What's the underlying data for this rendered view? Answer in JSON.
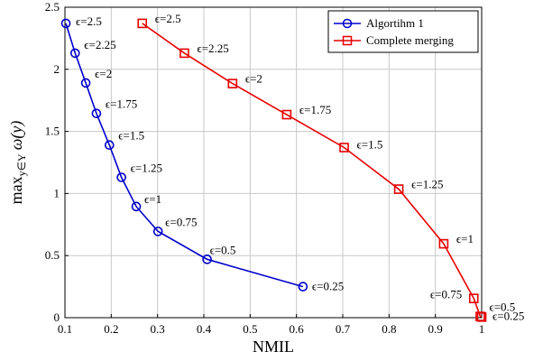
{
  "chart_data": {
    "type": "line",
    "xlabel": "NMIL",
    "ylabel": "max",
    "ylabel_sub": "y∈Y",
    "ylabel_tail": "ω(y)",
    "xlim": [
      0.1,
      1.0
    ],
    "ylim": [
      0,
      2.5
    ],
    "x_ticks": [
      "0.1",
      "0.2",
      "0.3",
      "0.4",
      "0.5",
      "0.6",
      "0.7",
      "0.8",
      "0.9",
      "1"
    ],
    "y_ticks": [
      "0",
      "0.5",
      "1",
      "1.5",
      "2",
      "2.5"
    ],
    "grid": true,
    "legend_position": "top-right",
    "series": [
      {
        "name": "Algortihm 1",
        "color": "#0000cc",
        "marker": "circle",
        "points": [
          {
            "x": 0.102,
            "y": 2.37,
            "label": "ϵ=2.5"
          },
          {
            "x": 0.122,
            "y": 2.13,
            "label": "ϵ=2.25"
          },
          {
            "x": 0.145,
            "y": 1.89,
            "label": "ϵ=2"
          },
          {
            "x": 0.168,
            "y": 1.645,
            "label": "ϵ=1.75"
          },
          {
            "x": 0.196,
            "y": 1.39,
            "label": "ϵ=1.5"
          },
          {
            "x": 0.222,
            "y": 1.13,
            "label": "ϵ=1.25"
          },
          {
            "x": 0.254,
            "y": 0.895,
            "label": "ϵ=1"
          },
          {
            "x": 0.301,
            "y": 0.695,
            "label": "ϵ=0.75"
          },
          {
            "x": 0.407,
            "y": 0.47,
            "label": "ϵ=0.5"
          },
          {
            "x": 0.614,
            "y": 0.25,
            "label": "ϵ=0.25"
          }
        ]
      },
      {
        "name": "Complete merging",
        "color": "#e60000",
        "marker": "square",
        "points": [
          {
            "x": 0.267,
            "y": 2.37,
            "label": "ϵ=2.5"
          },
          {
            "x": 0.358,
            "y": 2.13,
            "label": "ϵ=2.25"
          },
          {
            "x": 0.462,
            "y": 1.885,
            "label": "ϵ=2"
          },
          {
            "x": 0.579,
            "y": 1.635,
            "label": "ϵ=1.75"
          },
          {
            "x": 0.703,
            "y": 1.37,
            "label": "ϵ=1.5"
          },
          {
            "x": 0.821,
            "y": 1.035,
            "label": "ϵ=1.25"
          },
          {
            "x": 0.918,
            "y": 0.595,
            "label": "ϵ=1"
          },
          {
            "x": 0.983,
            "y": 0.155,
            "label": "ϵ=0.75"
          },
          {
            "x": 0.997,
            "y": 0.01,
            "label": "ϵ=0.5"
          },
          {
            "x": 1.0,
            "y": 0.005,
            "label": "ϵ=0.25"
          }
        ]
      }
    ]
  }
}
